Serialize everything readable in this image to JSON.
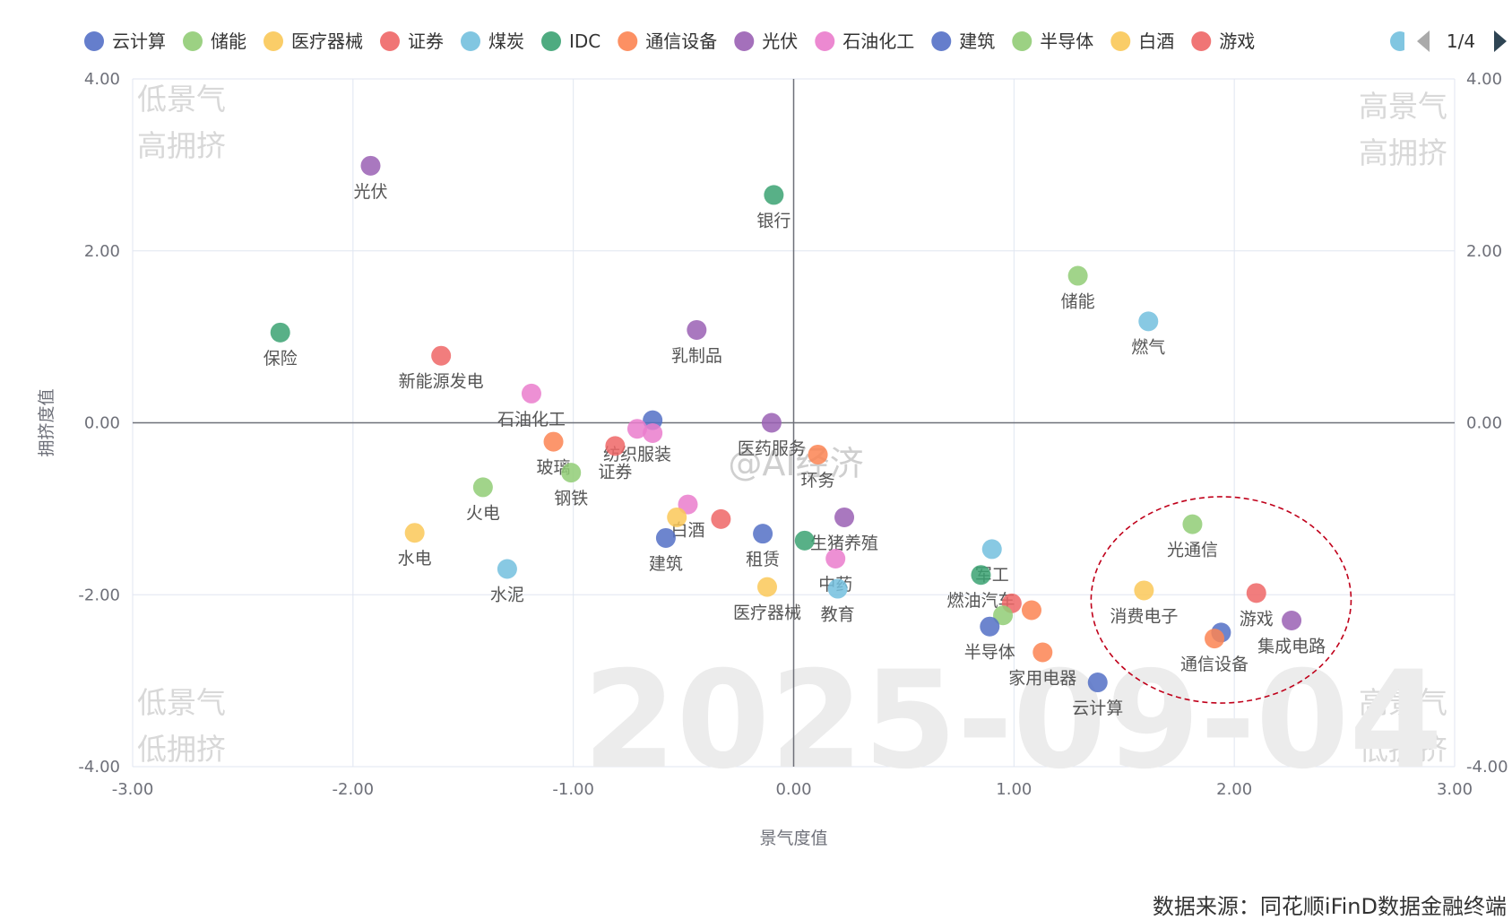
{
  "chart_data": {
    "type": "scatter",
    "xlabel": "景气度值",
    "ylabel": "拥挤度值",
    "xlim": [
      -3,
      3
    ],
    "ylim": [
      -4,
      4
    ],
    "x_ticks": [
      "-3.00",
      "-2.00",
      "-1.00",
      "0.00",
      "1.00",
      "2.00",
      "3.00"
    ],
    "y_ticks": [
      "4.00",
      "2.00",
      "0.00",
      "-2.00",
      "-4.00"
    ],
    "right_y_ticks": [
      "4.00",
      "2.00",
      "0.00",
      "",
      "-4.00"
    ],
    "grid": true,
    "legend": {
      "placement": "top",
      "items": [
        {
          "name": "云计算",
          "color": "#5470c6"
        },
        {
          "name": "储能",
          "color": "#91cc75"
        },
        {
          "name": "医疗器械",
          "color": "#fac858"
        },
        {
          "name": "证券",
          "color": "#ee6666"
        },
        {
          "name": "煤炭",
          "color": "#73c0de"
        },
        {
          "name": "IDC",
          "color": "#3ba272"
        },
        {
          "name": "通信设备",
          "color": "#fc8452"
        },
        {
          "name": "光伏",
          "color": "#9a60b4"
        },
        {
          "name": "石油化工",
          "color": "#ea7ccc"
        },
        {
          "name": "建筑",
          "color": "#5470c6"
        },
        {
          "name": "半导体",
          "color": "#91cc75"
        },
        {
          "name": "白酒",
          "color": "#fac858"
        },
        {
          "name": "游戏",
          "color": "#ee6666"
        }
      ],
      "page": "1/4"
    },
    "quadrant_labels": {
      "top_left": [
        "低景气",
        "高拥挤"
      ],
      "top_right": [
        "高景气",
        "高拥挤"
      ],
      "bottom_left": [
        "低景气",
        "低拥挤"
      ],
      "bottom_right": [
        "高景气",
        "低拥挤"
      ]
    },
    "date_watermark": "2025-09-04",
    "watermark": "@AI经济",
    "points": [
      {
        "name": "光伏",
        "x": -1.92,
        "y": 2.99,
        "color": "#9a60b4"
      },
      {
        "name": "银行",
        "x": -0.09,
        "y": 2.65,
        "color": "#3ba272"
      },
      {
        "name": "储能",
        "x": 1.29,
        "y": 1.71,
        "color": "#91cc75"
      },
      {
        "name": "燃气",
        "x": 1.61,
        "y": 1.18,
        "color": "#73c0de"
      },
      {
        "name": "保险",
        "x": -2.33,
        "y": 1.05,
        "color": "#3ba272"
      },
      {
        "name": "乳制品",
        "x": -0.44,
        "y": 1.08,
        "color": "#9a60b4"
      },
      {
        "name": "新能源发电",
        "x": -1.6,
        "y": 0.78,
        "color": "#ee6666"
      },
      {
        "name": "石油化工",
        "x": -1.19,
        "y": 0.34,
        "color": "#ea7ccc"
      },
      {
        "name": "",
        "x": -0.64,
        "y": 0.03,
        "color": "#5470c6"
      },
      {
        "name": "纺织服装",
        "x": -0.71,
        "y": -0.07,
        "color": "#ea7ccc"
      },
      {
        "name": "",
        "x": -0.64,
        "y": -0.12,
        "color": "#ea7ccc"
      },
      {
        "name": "医药服务",
        "x": -0.1,
        "y": 0.0,
        "color": "#9a60b4"
      },
      {
        "name": "玻璃",
        "x": -1.09,
        "y": -0.22,
        "color": "#fc8452"
      },
      {
        "name": "证券",
        "x": -0.81,
        "y": -0.27,
        "color": "#ee6666"
      },
      {
        "name": "环务",
        "x": 0.11,
        "y": -0.37,
        "color": "#fc8452"
      },
      {
        "name": "钢铁",
        "x": -1.01,
        "y": -0.58,
        "color": "#91cc75"
      },
      {
        "name": "火电",
        "x": -1.41,
        "y": -0.75,
        "color": "#91cc75"
      },
      {
        "name": "白酒",
        "x": -0.48,
        "y": -0.95,
        "color": "#ea7ccc"
      },
      {
        "name": "",
        "x": -0.53,
        "y": -1.1,
        "color": "#fac858"
      },
      {
        "name": "",
        "x": -0.33,
        "y": -1.12,
        "color": "#ee6666"
      },
      {
        "name": "生猪养殖",
        "x": 0.23,
        "y": -1.1,
        "color": "#9a60b4"
      },
      {
        "name": "水电",
        "x": -1.72,
        "y": -1.28,
        "color": "#fac858"
      },
      {
        "name": "建筑",
        "x": -0.58,
        "y": -1.34,
        "color": "#5470c6"
      },
      {
        "name": "租赁",
        "x": -0.14,
        "y": -1.29,
        "color": "#5470c6"
      },
      {
        "name": "",
        "x": 0.05,
        "y": -1.37,
        "color": "#3ba272"
      },
      {
        "name": "中药",
        "x": 0.19,
        "y": -1.58,
        "color": "#ea7ccc"
      },
      {
        "name": "水泥",
        "x": -1.3,
        "y": -1.7,
        "color": "#73c0de"
      },
      {
        "name": "医疗器械",
        "x": -0.12,
        "y": -1.91,
        "color": "#fac858"
      },
      {
        "name": "教育",
        "x": 0.2,
        "y": -1.93,
        "color": "#73c0de"
      },
      {
        "name": "军工",
        "x": 0.9,
        "y": -1.47,
        "color": "#73c0de"
      },
      {
        "name": "燃油汽车",
        "x": 0.85,
        "y": -1.77,
        "color": "#3ba272"
      },
      {
        "name": "",
        "x": 0.99,
        "y": -2.1,
        "color": "#ee6666"
      },
      {
        "name": "",
        "x": 1.08,
        "y": -2.18,
        "color": "#fc8452"
      },
      {
        "name": "",
        "x": 0.95,
        "y": -2.24,
        "color": "#91cc75"
      },
      {
        "name": "半导体",
        "x": 0.89,
        "y": -2.37,
        "color": "#5470c6"
      },
      {
        "name": "家用电器",
        "x": 1.13,
        "y": -2.67,
        "color": "#fc8452"
      },
      {
        "name": "云计算",
        "x": 1.38,
        "y": -3.02,
        "color": "#5470c6"
      },
      {
        "name": "光通信",
        "x": 1.81,
        "y": -1.18,
        "color": "#91cc75"
      },
      {
        "name": "消费电子",
        "x": 1.59,
        "y": -1.95,
        "color": "#fac858"
      },
      {
        "name": "游戏",
        "x": 2.1,
        "y": -1.98,
        "color": "#ee6666"
      },
      {
        "name": "集成电路",
        "x": 2.26,
        "y": -2.3,
        "color": "#9a60b4"
      },
      {
        "name": "",
        "x": 1.94,
        "y": -2.44,
        "color": "#5470c6"
      },
      {
        "name": "通信设备",
        "x": 1.91,
        "y": -2.51,
        "color": "#fc8452"
      }
    ],
    "annotation": {
      "type": "ellipse",
      "cx": 1.94,
      "cy": -2.06,
      "rx": 0.59,
      "ry": 1.2
    }
  },
  "source_text": "数据来源：同花顺iFinD数据金融终端"
}
